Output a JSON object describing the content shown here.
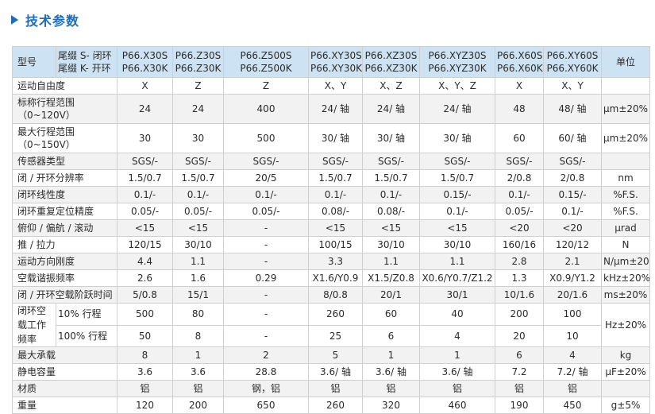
{
  "heading": "技术参数",
  "header": {
    "type_label": "型号",
    "suffix_lines": [
      "尾缀 S- 闭环",
      "尾缀 K- 开环"
    ],
    "models": [
      [
        "P66.X30S",
        "P66.X30K"
      ],
      [
        "P66.Z30S",
        "P66.Z30K"
      ],
      [
        "P66.Z500S",
        "P66.Z500K"
      ],
      [
        "P66.XY30S",
        "P66.XY30K"
      ],
      [
        "P66.XZ30S",
        "P66.XZ30K"
      ],
      [
        "P66.XYZ30S",
        "P66.XYZ30K"
      ],
      [
        "P66.X60S",
        "P66.X60K"
      ],
      [
        "P66.XY60S",
        "P66.XY60K"
      ]
    ],
    "unit_label": "单位"
  },
  "rows": [
    {
      "label": "运动自由度",
      "values": [
        "X",
        "Z",
        "Z",
        "X、Y",
        "X、Z",
        "X、Y、Z",
        "X",
        "X、Y"
      ],
      "unit": ""
    },
    {
      "label": "标称行程范围（0~120V）",
      "values": [
        "24",
        "24",
        "400",
        "24/ 轴",
        "24/ 轴",
        "24/ 轴",
        "48",
        "48/ 轴"
      ],
      "unit": "μm±20%"
    },
    {
      "label": "最大行程范围（0~150V）",
      "values": [
        "30",
        "30",
        "500",
        "30/ 轴",
        "30/ 轴",
        "30/ 轴",
        "60",
        "60/ 轴"
      ],
      "unit": "μm±20%"
    },
    {
      "label": "传感器类型",
      "values": [
        "SGS/-",
        "SGS/-",
        "SGS/-",
        "SGS/-",
        "SGS/-",
        "SGS/-",
        "SGS/-",
        "SGS/-"
      ],
      "unit": ""
    },
    {
      "label": "闭 / 开环分辨率",
      "values": [
        "1.5/0.7",
        "1.5/0.7",
        "20/5",
        "1.5/0.7",
        "1.5/0.7",
        "1.5/0.7",
        "2/0.8",
        "2/0.8"
      ],
      "unit": "nm"
    },
    {
      "label": "闭环线性度",
      "values": [
        "0.1/-",
        "0.1/-",
        "0.1/-",
        "0.1/-",
        "0.1/-",
        "0.15/-",
        "0.1/-",
        "0.15/-"
      ],
      "unit": "%F.S."
    },
    {
      "label": "闭环重复定位精度",
      "values": [
        "0.05/-",
        "0.05/-",
        "0.05/-",
        "0.08/-",
        "0.08/-",
        "0.1/-",
        "0.05/-",
        "0.1/-"
      ],
      "unit": "%F.S."
    },
    {
      "label": "俯仰 / 偏航 / 滚动",
      "values": [
        "<15",
        "<15",
        "-",
        "<15",
        "<15",
        "<15",
        "<20",
        "<20"
      ],
      "unit": "μrad"
    },
    {
      "label": "推 / 拉力",
      "values": [
        "120/15",
        "30/10",
        "-",
        "100/15",
        "30/10",
        "30/10",
        "160/16",
        "120/12"
      ],
      "unit": "N"
    },
    {
      "label": "运动方向刚度",
      "values": [
        "4.4",
        "1.1",
        "-",
        "3.3",
        "1.1",
        "1.1",
        "2.8",
        "2.1"
      ],
      "unit": "N/μm±20%"
    },
    {
      "label": "空载谐振频率",
      "values": [
        "2.6",
        "1.6",
        "0.29",
        "X1.6/Y0.9",
        "X1.5/Z0.8",
        "X0.6/Y0.7/Z1.2",
        "1.3",
        "X0.9/Y1.2"
      ],
      "unit": "kHz±20%"
    },
    {
      "label": "闭 / 开环空载阶跃时间",
      "values": [
        "5/0.8",
        "15/1",
        "-",
        "8/0.8",
        "20/1",
        "30/1",
        "10/1.6",
        "20/1.6"
      ],
      "unit": "ms±20%"
    }
  ],
  "closed_loop_freq": {
    "group_label": "闭环空载工作频率",
    "unit": "Hz±20%",
    "sub": [
      {
        "label": "10% 行程",
        "values": [
          "500",
          "80",
          "-",
          "260",
          "60",
          "40",
          "200",
          "100"
        ]
      },
      {
        "label": "100% 行程",
        "values": [
          "50",
          "8",
          "-",
          "25",
          "6",
          "4",
          "20",
          "10"
        ]
      }
    ]
  },
  "rows2": [
    {
      "label": "最大承载",
      "values": [
        "8",
        "1",
        "2",
        "5",
        "1",
        "1",
        "6",
        "4"
      ],
      "unit": "kg"
    },
    {
      "label": "静电容量",
      "values": [
        "3.6",
        "3.6",
        "28.8",
        "3.6/ 轴",
        "3.6/ 轴",
        "3.6/ 轴",
        "7.2",
        "7.2/ 轴"
      ],
      "unit": "μF±20%"
    },
    {
      "label": "材质",
      "values": [
        "铝",
        "铝",
        "钢，铝",
        "铝",
        "铝",
        "铝",
        "铝",
        "铝"
      ],
      "unit": ""
    },
    {
      "label": "重量",
      "values": [
        "120",
        "200",
        "650",
        "260",
        "320",
        "460",
        "190",
        "450"
      ],
      "unit": "g±5%"
    }
  ]
}
